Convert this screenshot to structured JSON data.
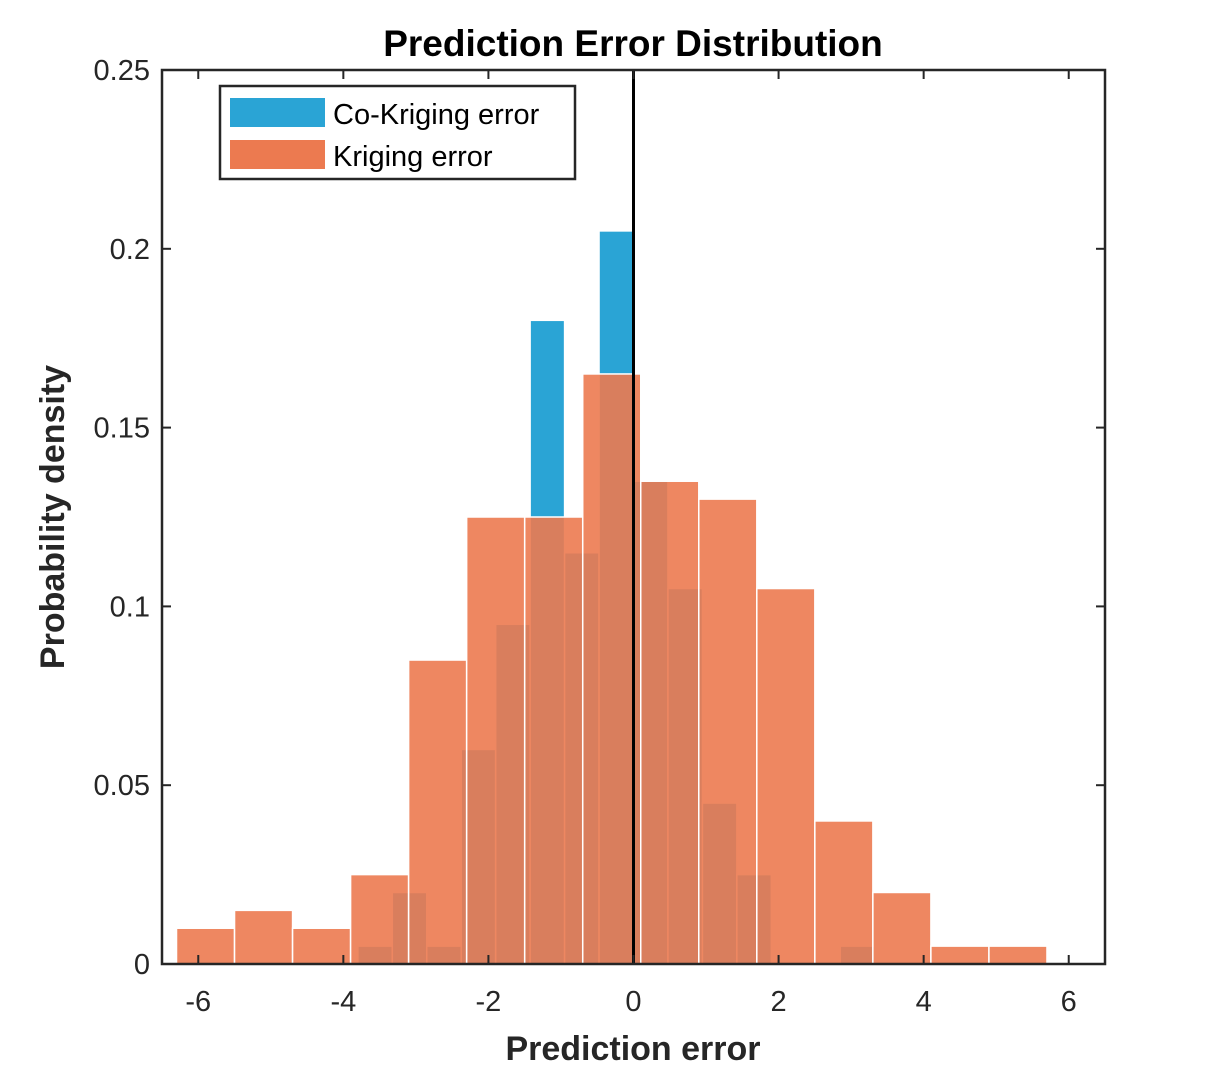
{
  "chart_data": {
    "type": "bar",
    "title": "Prediction Error Distribution",
    "xlabel": "Prediction error",
    "ylabel": "Probability density",
    "xlim": [
      -6.5,
      6.5
    ],
    "ylim": [
      0,
      0.25
    ],
    "xticks": [
      -6,
      -4,
      -2,
      0,
      2,
      4,
      6
    ],
    "xtick_labels": [
      "-6",
      "-4",
      "-2",
      "0",
      "2",
      "4",
      "6"
    ],
    "yticks": [
      0,
      0.05,
      0.1,
      0.15,
      0.2,
      0.25
    ],
    "ytick_labels": [
      "0",
      "0.05",
      "0.1",
      "0.15",
      "0.2",
      "0.25"
    ],
    "grid": false,
    "legend_position": "top-left",
    "reference_line": {
      "x": 0,
      "color": "#000000"
    },
    "series": [
      {
        "name": "Co-Kriging error",
        "color": "#2aa4d5",
        "bin_width": 0.475,
        "bins": [
          {
            "left": -3.8,
            "value": 0.005
          },
          {
            "left": -3.325,
            "value": 0.02
          },
          {
            "left": -2.85,
            "value": 0.005
          },
          {
            "left": -2.375,
            "value": 0.06
          },
          {
            "left": -1.9,
            "value": 0.095
          },
          {
            "left": -1.425,
            "value": 0.18
          },
          {
            "left": -0.95,
            "value": 0.115
          },
          {
            "left": -0.475,
            "value": 0.205
          },
          {
            "left": 0.0,
            "value": 0.135
          },
          {
            "left": 0.475,
            "value": 0.105
          },
          {
            "left": 0.95,
            "value": 0.045
          },
          {
            "left": 1.425,
            "value": 0.025
          },
          {
            "left": 1.9,
            "value": 0.0
          },
          {
            "left": 2.375,
            "value": 0.0
          },
          {
            "left": 2.85,
            "value": 0.005
          }
        ]
      },
      {
        "name": "Kriging error",
        "color": "#ec7a50",
        "bin_width": 0.8,
        "bins": [
          {
            "left": -6.3,
            "value": 0.01
          },
          {
            "left": -5.5,
            "value": 0.015
          },
          {
            "left": -4.7,
            "value": 0.01
          },
          {
            "left": -3.9,
            "value": 0.025
          },
          {
            "left": -3.1,
            "value": 0.085
          },
          {
            "left": -2.3,
            "value": 0.125
          },
          {
            "left": -1.5,
            "value": 0.125
          },
          {
            "left": -0.7,
            "value": 0.165
          },
          {
            "left": 0.1,
            "value": 0.135
          },
          {
            "left": 0.9,
            "value": 0.13
          },
          {
            "left": 1.7,
            "value": 0.105
          },
          {
            "left": 2.5,
            "value": 0.04
          },
          {
            "left": 3.3,
            "value": 0.02
          },
          {
            "left": 4.1,
            "value": 0.005
          },
          {
            "left": 4.9,
            "value": 0.005
          }
        ]
      }
    ]
  }
}
